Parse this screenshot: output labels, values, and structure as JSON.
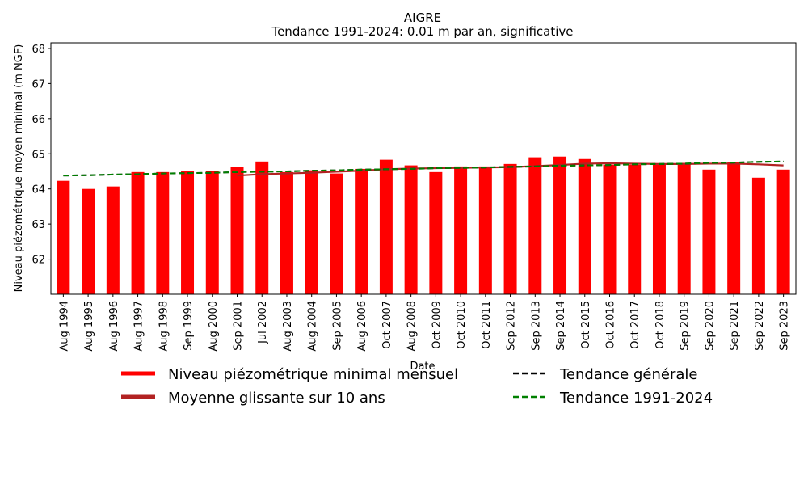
{
  "chart_data": {
    "type": "bar",
    "title": "AIGRE",
    "subtitle": "Tendance 1991-2024: 0.01 m par an, significative",
    "x_label": "Date",
    "y_label": "Niveau piézométrique moyen minimal (m NGF)",
    "categories": [
      "Aug 1994",
      "Aug 1995",
      "Aug 1996",
      "Aug 1997",
      "Aug 1998",
      "Sep 1999",
      "Aug 2000",
      "Sep 2001",
      "Jul 2002",
      "Aug 2003",
      "Aug 2004",
      "Sep 2005",
      "Aug 2006",
      "Oct 2007",
      "Aug 2008",
      "Oct 2009",
      "Oct 2010",
      "Oct 2011",
      "Sep 2012",
      "Sep 2013",
      "Sep 2014",
      "Oct 2015",
      "Oct 2016",
      "Oct 2017",
      "Oct 2018",
      "Sep 2019",
      "Sep 2020",
      "Sep 2021",
      "Sep 2022",
      "Sep 2023"
    ],
    "series": [
      {
        "name": "Niveau piézométrique minimal mensuel",
        "type": "bar",
        "color": "#ff0000",
        "values": [
          64.23,
          64.0,
          64.07,
          64.48,
          64.48,
          64.5,
          64.5,
          64.62,
          64.78,
          64.48,
          64.53,
          64.44,
          64.57,
          64.83,
          64.67,
          64.48,
          64.64,
          64.64,
          64.71,
          64.9,
          64.92,
          64.85,
          64.69,
          64.69,
          64.69,
          64.74,
          64.55,
          64.76,
          64.32,
          64.55
        ]
      },
      {
        "name": "Moyenne glissante sur 10 ans",
        "type": "line",
        "color": "#b22222",
        "dashed": false,
        "values": [
          null,
          null,
          null,
          null,
          null,
          null,
          null,
          64.38,
          64.42,
          64.44,
          64.46,
          64.49,
          64.52,
          64.56,
          64.58,
          64.59,
          64.6,
          64.61,
          64.62,
          64.65,
          64.68,
          64.72,
          64.73,
          64.72,
          64.71,
          64.71,
          64.72,
          64.72,
          64.7,
          64.67
        ]
      },
      {
        "name": "Tendance générale",
        "type": "line",
        "color": "#000000",
        "dashed": true,
        "values": [
          64.38,
          64.39,
          64.41,
          64.42,
          64.44,
          64.45,
          64.46,
          64.48,
          64.49,
          64.5,
          64.52,
          64.53,
          64.55,
          64.56,
          64.57,
          64.59,
          64.6,
          64.61,
          64.63,
          64.64,
          64.66,
          64.67,
          64.68,
          64.7,
          64.71,
          64.72,
          64.74,
          64.75,
          64.77,
          64.78
        ]
      },
      {
        "name": "Tendance 1991-2024",
        "type": "line",
        "color": "#008000",
        "dashed": true,
        "values": [
          64.38,
          64.39,
          64.41,
          64.42,
          64.44,
          64.45,
          64.46,
          64.48,
          64.49,
          64.5,
          64.52,
          64.53,
          64.55,
          64.56,
          64.57,
          64.59,
          64.6,
          64.61,
          64.63,
          64.64,
          64.66,
          64.67,
          64.68,
          64.7,
          64.71,
          64.72,
          64.74,
          64.75,
          64.77,
          64.78
        ]
      }
    ],
    "ylim": [
      61.0,
      68.16
    ],
    "yticks": [
      62,
      63,
      64,
      65,
      66,
      67,
      68
    ],
    "grid": false,
    "legend": "lower center"
  }
}
